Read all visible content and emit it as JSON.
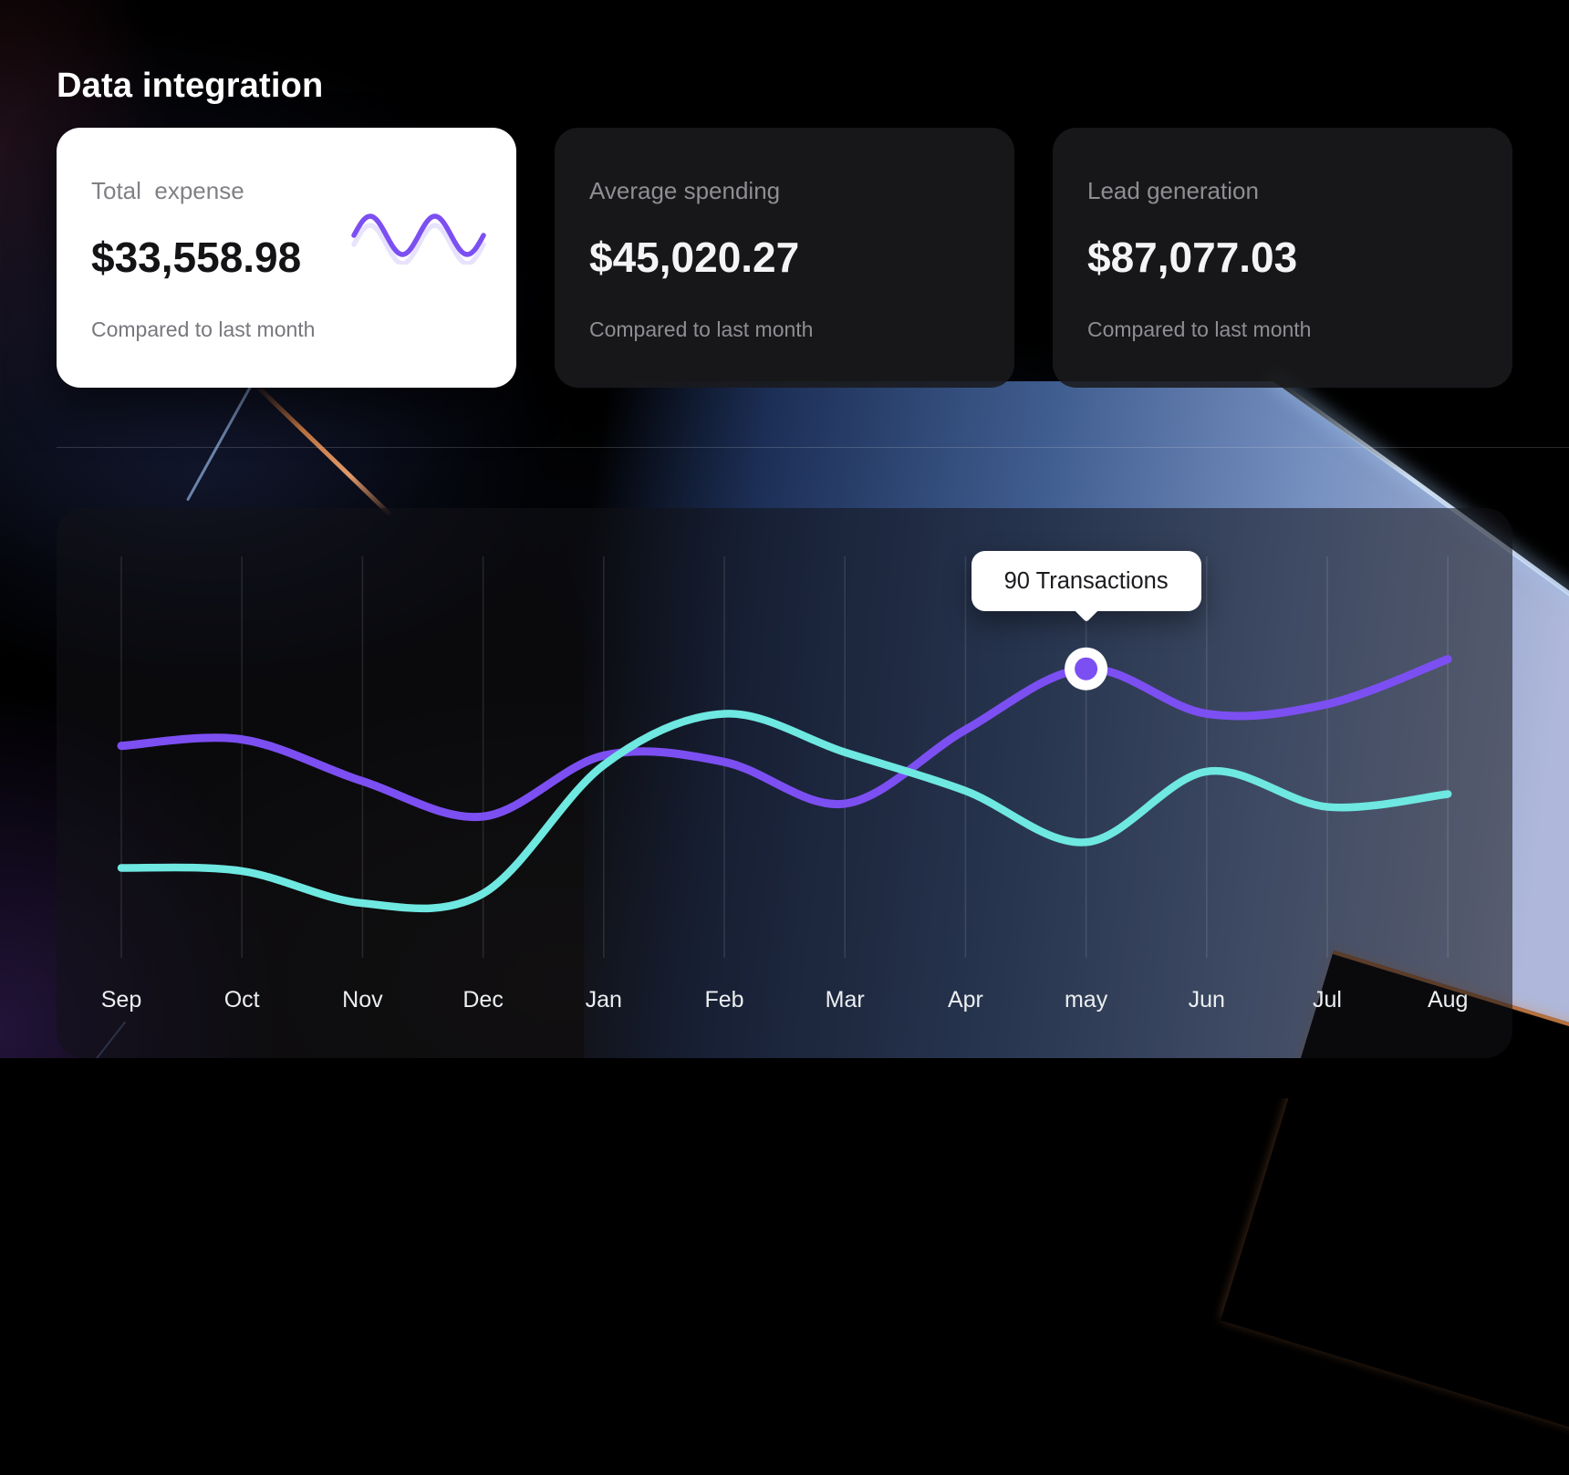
{
  "page": {
    "title": "Data integration"
  },
  "cards": [
    {
      "label": "Total  expense",
      "value": "$33,558.98",
      "footnote": "Compared to last month",
      "variant": "light",
      "sparkline_icon": "sine-wave-sparkline"
    },
    {
      "label": "Average spending",
      "value": "$45,020.27",
      "footnote": "Compared to last month",
      "variant": "dark"
    },
    {
      "label": "Lead generation",
      "value": "$87,077.03",
      "footnote": "Compared to last month",
      "variant": "dark"
    }
  ],
  "chart_data": {
    "type": "line",
    "title": "",
    "xlabel": "",
    "ylabel": "",
    "categories": [
      "Sep",
      "Oct",
      "Nov",
      "Dec",
      "Jan",
      "Feb",
      "Mar",
      "Apr",
      "may",
      "Jun",
      "Jul",
      "Aug"
    ],
    "series": [
      {
        "name": "transactions-purple",
        "color": "#7c4ff2",
        "width": 9,
        "values": [
          66,
          68,
          55,
          44,
          63,
          61,
          48,
          71,
          90,
          76,
          79,
          93
        ]
      },
      {
        "name": "transactions-cyan",
        "color": "#6ee8e1",
        "width": 8.5,
        "values": [
          28,
          27,
          17,
          20,
          60,
          76,
          64,
          52,
          36,
          58,
          47,
          51
        ]
      }
    ],
    "ylim": [
      0,
      125
    ],
    "grid": "vertical-only",
    "legend": "none",
    "tooltip": {
      "text": "90 Transactions",
      "series": "transactions-purple",
      "category": "may",
      "value": 90
    }
  },
  "colors": {
    "accent_purple": "#7c4ff2",
    "accent_cyan": "#6ee8e1",
    "axis_label": "#eceff1",
    "gridline": "rgba(255,255,255,0.11)",
    "tooltip_bg": "#ffffff",
    "tooltip_text": "#1b1b1f"
  }
}
